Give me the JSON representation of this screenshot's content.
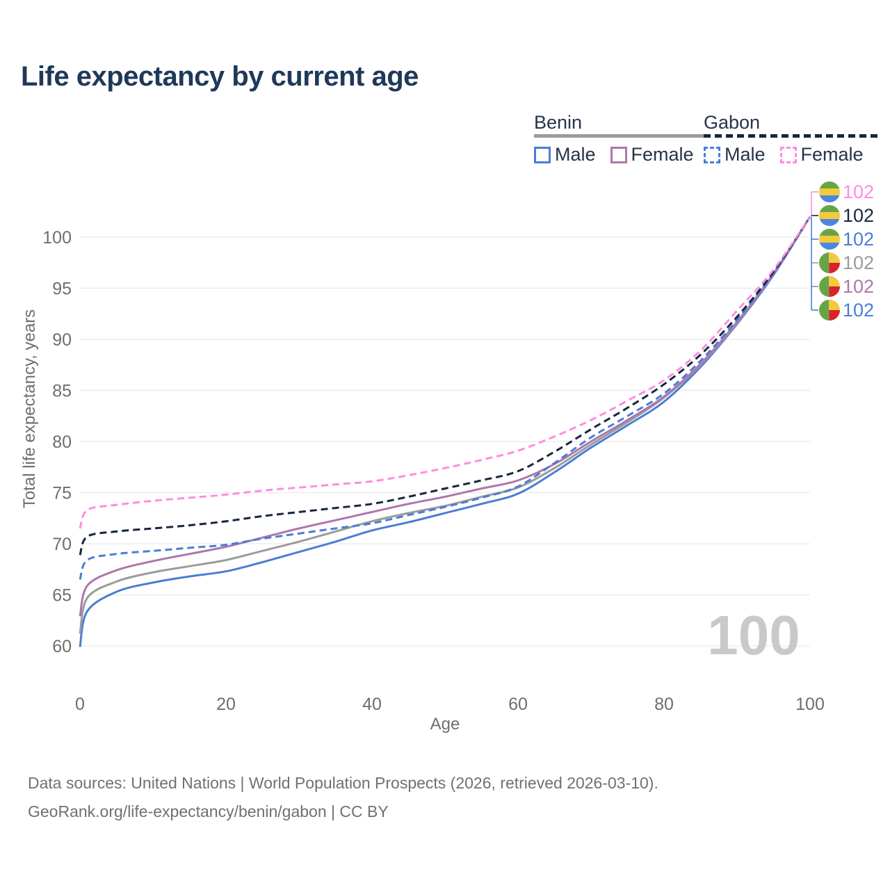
{
  "title": "Life expectancy by current age",
  "legend": {
    "groups": [
      {
        "label": "Benin",
        "line_style": "solid",
        "line_color": "#9b9b9b",
        "items": [
          {
            "label": "Male",
            "color": "#4a7dd6"
          },
          {
            "label": "Female",
            "color": "#ad77ad"
          }
        ]
      },
      {
        "label": "Gabon",
        "line_style": "dashed",
        "line_color": "#16263e",
        "items": [
          {
            "label": "Male",
            "color": "#4a7dd6"
          },
          {
            "label": "Female",
            "color": "#ff8ce0"
          }
        ]
      }
    ]
  },
  "chart_data": {
    "type": "line",
    "title": "Life expectancy by current age",
    "xlabel": "Age",
    "ylabel": "Total life expectancy, years",
    "xlim": [
      0,
      100
    ],
    "ylim": [
      58.5,
      103.5
    ],
    "x_ticks": [
      0,
      20,
      40,
      60,
      80,
      100
    ],
    "y_ticks": [
      60,
      65,
      70,
      75,
      80,
      85,
      90,
      95,
      100
    ],
    "grid": "horizontal",
    "legend_position": "top-right",
    "watermark": "100",
    "x": [
      0,
      1,
      5,
      10,
      15,
      20,
      25,
      30,
      35,
      40,
      45,
      50,
      55,
      60,
      65,
      70,
      75,
      80,
      85,
      90,
      95,
      100
    ],
    "series": [
      {
        "name": "Benin Male",
        "country": "Benin",
        "sex": "Male",
        "color": "#4a7dd6",
        "dash": "solid",
        "values": [
          59.9,
          63.4,
          65.3,
          66.2,
          66.8,
          67.3,
          68.2,
          69.2,
          70.2,
          71.3,
          72.1,
          73.0,
          73.9,
          74.9,
          77.0,
          79.4,
          81.6,
          83.9,
          87.3,
          91.5,
          96.3,
          102
        ]
      },
      {
        "name": "Benin",
        "country": "Benin",
        "sex": "Both",
        "color": "#9b9b9b",
        "dash": "solid",
        "values": [
          61.2,
          64.7,
          66.3,
          67.2,
          67.8,
          68.4,
          69.3,
          70.2,
          71.2,
          72.2,
          73.0,
          73.7,
          74.6,
          75.5,
          77.4,
          79.7,
          81.9,
          84.3,
          87.5,
          91.6,
          96.4,
          102
        ]
      },
      {
        "name": "Benin Female",
        "country": "Benin",
        "sex": "Female",
        "color": "#ad77ad",
        "dash": "solid",
        "values": [
          62.9,
          65.9,
          67.4,
          68.3,
          69.0,
          69.7,
          70.6,
          71.5,
          72.3,
          73.1,
          73.9,
          74.6,
          75.4,
          76.2,
          77.8,
          80.0,
          82.1,
          84.4,
          87.6,
          91.7,
          96.4,
          102
        ]
      },
      {
        "name": "Gabon Male",
        "country": "Gabon",
        "sex": "Male",
        "color": "#4a7dd6",
        "dash": "dashed",
        "values": [
          66.5,
          68.4,
          69.0,
          69.3,
          69.6,
          69.9,
          70.5,
          71.0,
          71.5,
          72.0,
          72.8,
          73.6,
          74.5,
          75.6,
          77.9,
          80.4,
          82.5,
          84.7,
          87.9,
          91.9,
          96.5,
          102
        ]
      },
      {
        "name": "Gabon",
        "country": "Gabon",
        "sex": "Both",
        "color": "#16263e",
        "dash": "dashed",
        "values": [
          68.9,
          70.7,
          71.2,
          71.5,
          71.8,
          72.2,
          72.7,
          73.1,
          73.5,
          73.9,
          74.6,
          75.4,
          76.2,
          77.1,
          79.0,
          81.2,
          83.3,
          85.6,
          88.5,
          92.2,
          96.6,
          102
        ]
      },
      {
        "name": "Gabon Female",
        "country": "Gabon",
        "sex": "Female",
        "color": "#ff8ce0",
        "dash": "dashed",
        "values": [
          71.5,
          73.3,
          73.8,
          74.2,
          74.5,
          74.8,
          75.2,
          75.5,
          75.8,
          76.1,
          76.7,
          77.4,
          78.2,
          79.1,
          80.5,
          82.1,
          84.0,
          86.0,
          88.9,
          92.8,
          96.8,
          102
        ]
      }
    ],
    "end_labels": [
      {
        "series": "Gabon Female",
        "flag": "gabon",
        "color": "#ff8ce0",
        "value": "102"
      },
      {
        "series": "Gabon",
        "flag": "gabon",
        "color": "#16263e",
        "value": "102"
      },
      {
        "series": "Gabon Male",
        "flag": "gabon",
        "color": "#4a7dd6",
        "value": "102"
      },
      {
        "series": "Benin",
        "flag": "benin",
        "color": "#9b9b9b",
        "value": "102"
      },
      {
        "series": "Benin Female",
        "flag": "benin",
        "color": "#ad77ad",
        "value": "102"
      },
      {
        "series": "Benin Male",
        "flag": "benin",
        "color": "#4a7dd6",
        "value": "102"
      }
    ],
    "flag_colors": {
      "gabon": {
        "top": "#66a545",
        "middle": "#f3ca3c",
        "bottom": "#4d86dd"
      },
      "benin": {
        "left": "#66a545",
        "top_right": "#f3ca3c",
        "bottom_right": "#d8232e"
      }
    }
  },
  "footer": {
    "line1": "Data sources: United Nations | World Population Prospects (2026, retrieved 2026-03-10).",
    "line2": "GeoRank.org/life-expectancy/benin/gabon | CC BY"
  }
}
